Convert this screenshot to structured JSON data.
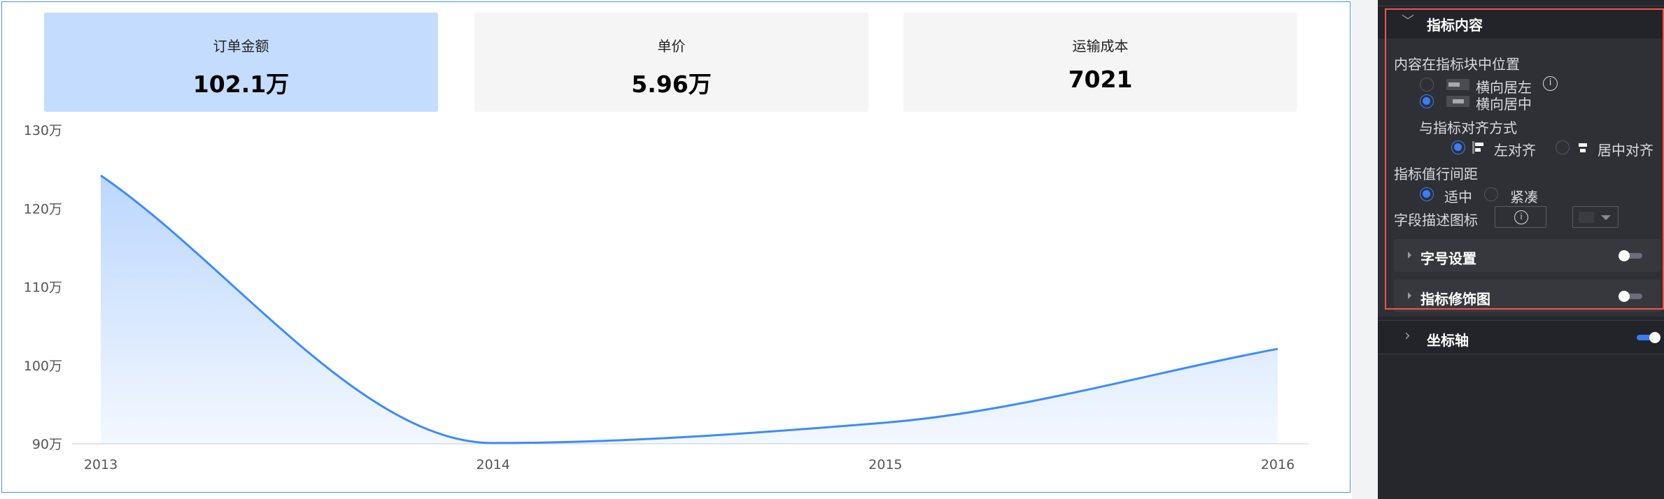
{
  "kpi_cards": [
    {
      "label": "订单金额",
      "value": "102.1万",
      "active": true
    },
    {
      "label": "单价",
      "value": "5.96万",
      "active": false
    },
    {
      "label": "运输成本",
      "value": "7021",
      "active": false
    }
  ],
  "chart_data": {
    "type": "area",
    "categories": [
      "2013",
      "2014",
      "2015",
      "2016"
    ],
    "values": [
      124.2,
      90.1,
      92.7,
      102.1
    ],
    "unit": "万",
    "ylim": [
      90,
      130
    ],
    "yticks": [
      "90万",
      "100万",
      "110万",
      "120万",
      "130万"
    ],
    "grid": false,
    "smooth": true,
    "color": "#3d8bfd"
  },
  "panel": {
    "section_title": "指标内容",
    "position_label": "内容在指标块中位置",
    "position_options": [
      {
        "label": "横向居左",
        "selected": false
      },
      {
        "label": "横向居中",
        "selected": true
      }
    ],
    "align_label": "与指标对齐方式",
    "align_options": [
      {
        "label": "左对齐",
        "selected": true
      },
      {
        "label": "居中对齐",
        "selected": false
      }
    ],
    "spacing_label": "指标值行间距",
    "spacing_options": [
      {
        "label": "适中",
        "selected": true
      },
      {
        "label": "紧凑",
        "selected": false
      }
    ],
    "field_icon_label": "字段描述图标",
    "font_size_label": "字号设置",
    "font_size_enabled": false,
    "decoration_label": "指标修饰图",
    "decoration_enabled": false,
    "axis_label": "坐标轴",
    "axis_enabled": true,
    "highlight_color": "#f0554a",
    "accent_color": "#3d7cf5"
  }
}
